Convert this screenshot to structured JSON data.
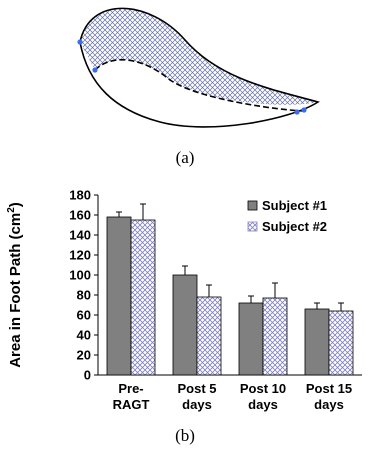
{
  "panel_a": {
    "caption": "(a)"
  },
  "panel_b": {
    "caption": "(b)"
  },
  "chart_data": {
    "type": "bar",
    "title": "",
    "xlabel": "",
    "ylabel": "Area in Foot Path (cm²)",
    "ylim": [
      0,
      180
    ],
    "yticks": [
      0,
      20,
      40,
      60,
      80,
      100,
      120,
      140,
      160,
      180
    ],
    "grid": false,
    "legend_position": "top-right",
    "categories": [
      [
        "Pre-",
        "RAGT"
      ],
      [
        "Post 5",
        "days"
      ],
      [
        "Post 10",
        "days"
      ],
      [
        "Post 15",
        "days"
      ]
    ],
    "series": [
      {
        "name": "Subject #1",
        "values": [
          158,
          100,
          72,
          66
        ],
        "errors": [
          5,
          9,
          7,
          6
        ],
        "color": "#808080",
        "pattern": "solid"
      },
      {
        "name": "Subject #2",
        "values": [
          155,
          78,
          77,
          64
        ],
        "errors": [
          16,
          12,
          15,
          8
        ],
        "color": "#ffffff",
        "pattern": "crosshatch",
        "hatch_color": "#8080c0"
      }
    ]
  }
}
